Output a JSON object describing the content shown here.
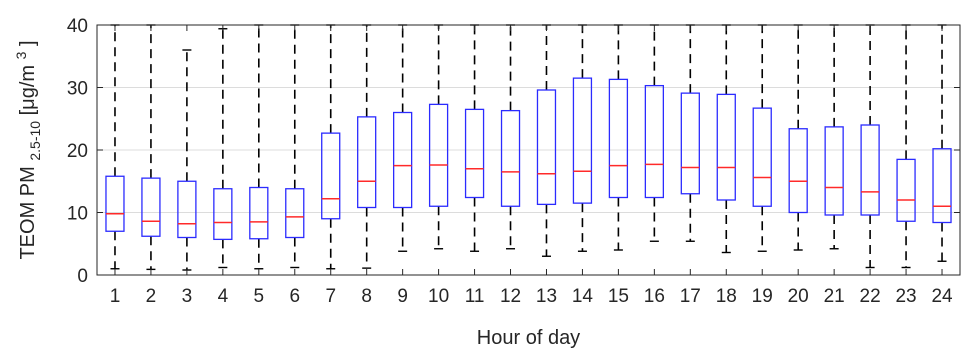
{
  "chart_data": {
    "type": "boxplot",
    "xlabel": "Hour of day",
    "ylabel": {
      "main": "TEOM PM",
      "subscript": "2.5-10",
      "unit_open": " [μg/m",
      "unit_sup": "3",
      "unit_close": "]"
    },
    "ylim": [
      0,
      40
    ],
    "yticks": [
      0,
      10,
      20,
      30,
      40
    ],
    "grid": true,
    "colors": {
      "box": "#2b2bff",
      "median": "#ff2a2a",
      "whisker": "#000000",
      "grid": "#dcdcdc",
      "axis": "#262626"
    },
    "categories": [
      "1",
      "2",
      "3",
      "4",
      "5",
      "6",
      "7",
      "8",
      "9",
      "10",
      "11",
      "12",
      "13",
      "14",
      "15",
      "16",
      "17",
      "18",
      "19",
      "20",
      "21",
      "22",
      "23",
      "24"
    ],
    "boxes": [
      {
        "hour": "1",
        "q1": 7.0,
        "median": 9.8,
        "q3": 15.8,
        "whisker_low": 1.0,
        "whisker_high": 40
      },
      {
        "hour": "2",
        "q1": 6.2,
        "median": 8.6,
        "q3": 15.5,
        "whisker_low": 0.9,
        "whisker_high": 40
      },
      {
        "hour": "3",
        "q1": 6.0,
        "median": 8.2,
        "q3": 15.0,
        "whisker_low": 0.8,
        "whisker_high": 36.0
      },
      {
        "hour": "4",
        "q1": 5.7,
        "median": 8.4,
        "q3": 13.8,
        "whisker_low": 1.2,
        "whisker_high": 39.4
      },
      {
        "hour": "5",
        "q1": 5.8,
        "median": 8.5,
        "q3": 14.0,
        "whisker_low": 1.0,
        "whisker_high": 40
      },
      {
        "hour": "6",
        "q1": 6.0,
        "median": 9.3,
        "q3": 13.8,
        "whisker_low": 1.2,
        "whisker_high": 40
      },
      {
        "hour": "7",
        "q1": 9.0,
        "median": 12.2,
        "q3": 22.7,
        "whisker_low": 1.0,
        "whisker_high": 40
      },
      {
        "hour": "8",
        "q1": 10.8,
        "median": 15.0,
        "q3": 25.3,
        "whisker_low": 1.1,
        "whisker_high": 40
      },
      {
        "hour": "9",
        "q1": 10.8,
        "median": 17.5,
        "q3": 26.0,
        "whisker_low": 3.8,
        "whisker_high": 40
      },
      {
        "hour": "10",
        "q1": 11.0,
        "median": 17.6,
        "q3": 27.3,
        "whisker_low": 4.2,
        "whisker_high": 40
      },
      {
        "hour": "11",
        "q1": 12.4,
        "median": 17.0,
        "q3": 26.5,
        "whisker_low": 3.8,
        "whisker_high": 40
      },
      {
        "hour": "12",
        "q1": 11.0,
        "median": 16.5,
        "q3": 26.3,
        "whisker_low": 4.2,
        "whisker_high": 40
      },
      {
        "hour": "13",
        "q1": 11.3,
        "median": 16.2,
        "q3": 29.6,
        "whisker_low": 3.0,
        "whisker_high": 40
      },
      {
        "hour": "14",
        "q1": 11.5,
        "median": 16.6,
        "q3": 31.5,
        "whisker_low": 3.8,
        "whisker_high": 40
      },
      {
        "hour": "15",
        "q1": 12.4,
        "median": 17.5,
        "q3": 31.3,
        "whisker_low": 4.0,
        "whisker_high": 40
      },
      {
        "hour": "16",
        "q1": 12.4,
        "median": 17.7,
        "q3": 30.3,
        "whisker_low": 5.4,
        "whisker_high": 40
      },
      {
        "hour": "17",
        "q1": 13.0,
        "median": 17.2,
        "q3": 29.1,
        "whisker_low": 5.4,
        "whisker_high": 40
      },
      {
        "hour": "18",
        "q1": 12.0,
        "median": 17.2,
        "q3": 28.9,
        "whisker_low": 3.6,
        "whisker_high": 40
      },
      {
        "hour": "19",
        "q1": 11.0,
        "median": 15.6,
        "q3": 26.7,
        "whisker_low": 3.8,
        "whisker_high": 40
      },
      {
        "hour": "20",
        "q1": 10.0,
        "median": 15.0,
        "q3": 23.4,
        "whisker_low": 4.0,
        "whisker_high": 40
      },
      {
        "hour": "21",
        "q1": 9.6,
        "median": 14.0,
        "q3": 23.7,
        "whisker_low": 4.2,
        "whisker_high": 40
      },
      {
        "hour": "22",
        "q1": 9.6,
        "median": 13.3,
        "q3": 24.0,
        "whisker_low": 1.2,
        "whisker_high": 40
      },
      {
        "hour": "23",
        "q1": 8.6,
        "median": 12.0,
        "q3": 18.5,
        "whisker_low": 1.2,
        "whisker_high": 40
      },
      {
        "hour": "24",
        "q1": 8.4,
        "median": 11.0,
        "q3": 20.2,
        "whisker_low": 2.2,
        "whisker_high": 40
      }
    ]
  }
}
